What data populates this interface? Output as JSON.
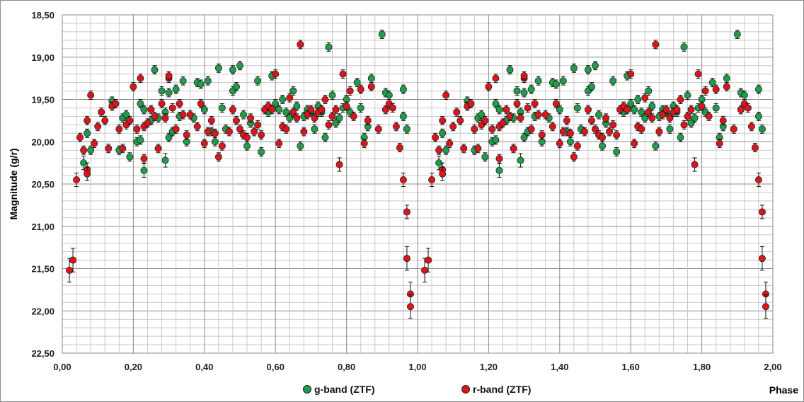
{
  "chart_data": {
    "type": "scatter",
    "xlabel": "Phase",
    "ylabel": "Magnitude (g/r)",
    "xlim": [
      0.0,
      2.0
    ],
    "ylim": [
      18.5,
      22.5
    ],
    "y_inverted": true,
    "x_ticks": [
      "0,00",
      "0,20",
      "0,40",
      "0,60",
      "0,80",
      "1,00",
      "1,20",
      "1,40",
      "1,60",
      "1,80",
      "2,00"
    ],
    "y_ticks": [
      "18,50",
      "19,00",
      "19,50",
      "20,00",
      "20,50",
      "21,00",
      "21,50",
      "22,00",
      "22,50"
    ],
    "grid": true,
    "legend_position": "bottom",
    "series": [
      {
        "name": "g-band (ZTF)",
        "color": "#1e9e4a",
        "x": [
          0.06,
          0.07,
          0.08,
          0.14,
          0.15,
          0.16,
          0.17,
          0.18,
          0.19,
          0.21,
          0.22,
          0.22,
          0.23,
          0.23,
          0.25,
          0.26,
          0.27,
          0.28,
          0.29,
          0.29,
          0.3,
          0.3,
          0.31,
          0.32,
          0.33,
          0.34,
          0.35,
          0.37,
          0.38,
          0.39,
          0.4,
          0.41,
          0.42,
          0.43,
          0.44,
          0.45,
          0.46,
          0.48,
          0.48,
          0.49,
          0.5,
          0.51,
          0.52,
          0.53,
          0.55,
          0.56,
          0.58,
          0.59,
          0.6,
          0.61,
          0.62,
          0.63,
          0.64,
          0.65,
          0.66,
          0.67,
          0.68,
          0.69,
          0.7,
          0.71,
          0.72,
          0.73,
          0.74,
          0.75,
          0.76,
          0.77,
          0.78,
          0.79,
          0.8,
          0.81,
          0.83,
          0.84,
          0.85,
          0.86,
          0.87,
          0.9,
          0.91,
          0.92,
          0.96,
          0.96,
          0.97
        ],
        "y": [
          20.25,
          19.9,
          20.1,
          19.52,
          19.55,
          20.1,
          19.72,
          19.68,
          20.18,
          20.0,
          19.55,
          19.98,
          19.62,
          20.34,
          19.75,
          19.15,
          19.72,
          19.4,
          19.65,
          20.22,
          19.42,
          19.95,
          19.88,
          19.38,
          19.7,
          19.28,
          20.0,
          19.72,
          19.3,
          19.32,
          19.62,
          19.28,
          19.88,
          20.0,
          19.13,
          19.6,
          19.85,
          19.4,
          19.15,
          19.35,
          19.1,
          19.68,
          20.05,
          19.78,
          19.28,
          20.12,
          19.65,
          19.22,
          19.55,
          19.62,
          19.5,
          19.65,
          19.72,
          19.4,
          19.58,
          20.05,
          19.7,
          19.62,
          19.65,
          19.85,
          19.58,
          19.65,
          19.95,
          18.88,
          19.45,
          19.78,
          19.72,
          19.6,
          19.5,
          19.65,
          19.3,
          19.6,
          19.95,
          19.82,
          19.25,
          18.73,
          19.42,
          19.45,
          19.38,
          19.7,
          19.85
        ]
      },
      {
        "name": "r-band (ZTF)",
        "color": "#e0131a",
        "x": [
          0.02,
          0.03,
          0.04,
          0.05,
          0.06,
          0.07,
          0.07,
          0.07,
          0.08,
          0.09,
          0.1,
          0.11,
          0.12,
          0.13,
          0.14,
          0.15,
          0.16,
          0.17,
          0.18,
          0.19,
          0.2,
          0.21,
          0.22,
          0.23,
          0.23,
          0.24,
          0.25,
          0.26,
          0.27,
          0.28,
          0.29,
          0.3,
          0.3,
          0.31,
          0.32,
          0.33,
          0.34,
          0.35,
          0.36,
          0.38,
          0.39,
          0.4,
          0.41,
          0.42,
          0.43,
          0.44,
          0.45,
          0.47,
          0.48,
          0.49,
          0.5,
          0.51,
          0.52,
          0.53,
          0.54,
          0.55,
          0.56,
          0.57,
          0.58,
          0.59,
          0.6,
          0.61,
          0.62,
          0.63,
          0.64,
          0.65,
          0.66,
          0.67,
          0.68,
          0.69,
          0.7,
          0.71,
          0.72,
          0.73,
          0.74,
          0.75,
          0.76,
          0.77,
          0.78,
          0.79,
          0.8,
          0.81,
          0.82,
          0.84,
          0.85,
          0.86,
          0.87,
          0.89,
          0.91,
          0.92,
          0.93,
          0.94,
          0.95,
          0.96,
          0.97,
          0.97,
          0.98,
          0.98
        ],
        "y": [
          21.52,
          21.4,
          20.45,
          19.95,
          20.1,
          20.33,
          19.75,
          20.38,
          19.45,
          20.02,
          19.82,
          19.65,
          19.75,
          20.08,
          19.58,
          19.55,
          19.85,
          20.08,
          19.8,
          19.75,
          19.35,
          19.85,
          19.25,
          20.2,
          19.82,
          19.78,
          19.62,
          19.7,
          20.08,
          19.55,
          19.72,
          19.25,
          19.22,
          19.6,
          19.85,
          19.55,
          19.68,
          19.92,
          19.68,
          19.82,
          19.55,
          20.02,
          19.88,
          19.75,
          19.9,
          20.18,
          20.05,
          19.88,
          19.62,
          19.75,
          19.85,
          19.92,
          19.95,
          19.72,
          19.88,
          19.8,
          19.92,
          19.62,
          19.58,
          19.62,
          19.2,
          20.02,
          19.82,
          19.85,
          19.48,
          19.65,
          19.72,
          18.85,
          19.88,
          19.68,
          19.62,
          19.72,
          19.65,
          19.62,
          19.5,
          19.8,
          19.7,
          19.62,
          20.27,
          19.2,
          19.58,
          19.4,
          19.7,
          19.38,
          20.02,
          19.75,
          19.35,
          19.85,
          19.62,
          19.55,
          19.6,
          19.82,
          20.07,
          20.45,
          20.83,
          21.38,
          21.8,
          21.95
        ]
      }
    ]
  }
}
